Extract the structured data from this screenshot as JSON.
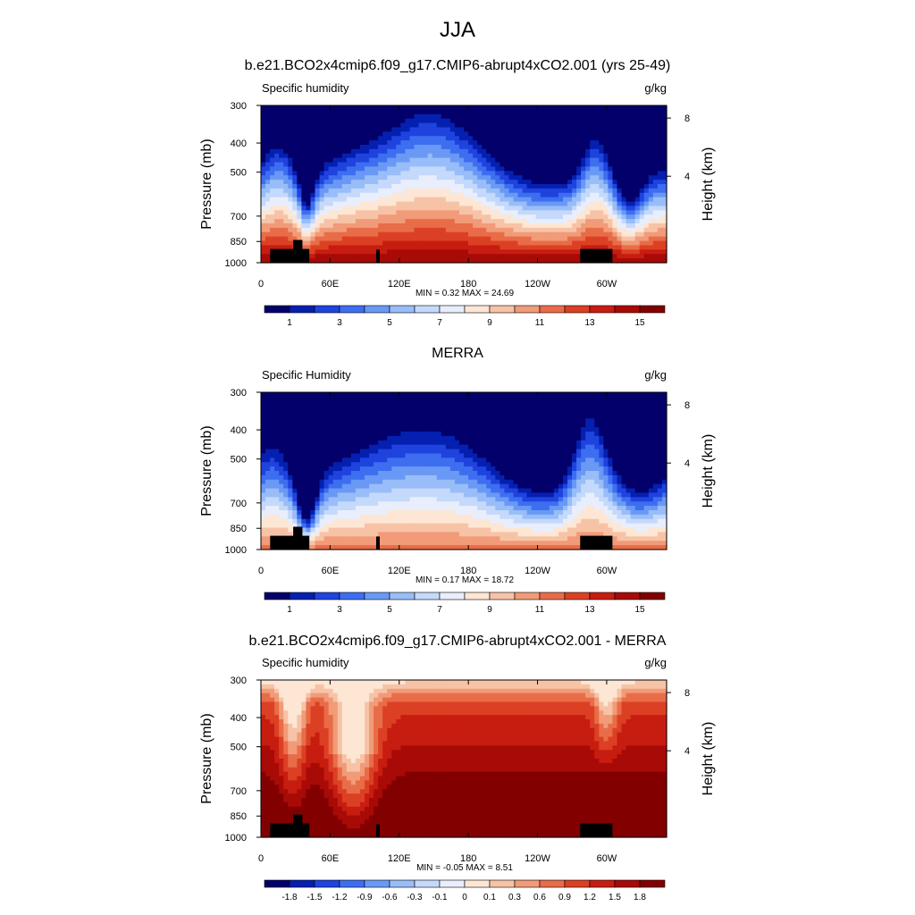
{
  "figure": {
    "title": "JJA",
    "colors": {
      "sequential": [
        "#04006b",
        "#0520b0",
        "#1f43de",
        "#3e6ef0",
        "#6a99f5",
        "#98bdf8",
        "#c4d9fb",
        "#e8eefc",
        "#fde6d4",
        "#f7c3a6",
        "#f19b78",
        "#e96c48",
        "#dc4024",
        "#c71d10",
        "#a80a07",
        "#820000"
      ],
      "diverging": [
        "#04006b",
        "#0520b0",
        "#1f43de",
        "#3e6ef0",
        "#6a99f5",
        "#98bdf8",
        "#c4d9fb",
        "#e8eefc",
        "#fde6d4",
        "#f7c3a6",
        "#f19b78",
        "#e96c48",
        "#dc4024",
        "#c71d10",
        "#a80a07",
        "#820000"
      ],
      "topography": "#000000"
    }
  },
  "chart_data": [
    {
      "type": "heatmap",
      "title": "b.e21.BCO2x4cmip6.f09_g17.CMIP6-abrupt4xCO2.001 (yrs 25-49)",
      "left_label": "Specific humidity",
      "right_label": "g/kg",
      "ylabel": "Pressure (mb)",
      "y2label": "Height (km)",
      "y_ticks": [
        300,
        400,
        500,
        700,
        850,
        1000
      ],
      "y2_ticks": [
        8,
        4
      ],
      "x_ticks": [
        "0",
        "60E",
        "120E",
        "180",
        "120W",
        "60W"
      ],
      "stats": "MIN =   0.32  MAX =  24.69",
      "levels": [
        "1",
        "3",
        "5",
        "7",
        "9",
        "11",
        "13",
        "15"
      ],
      "field": {
        "kind": "model",
        "surface_value": 17.0,
        "moist_scale": 1.0
      }
    },
    {
      "type": "heatmap",
      "title": "MERRA",
      "left_label": "Specific Humidity",
      "right_label": "g/kg",
      "ylabel": "Pressure (mb)",
      "y2label": "Height (km)",
      "y_ticks": [
        300,
        400,
        500,
        700,
        850,
        1000
      ],
      "y2_ticks": [
        8,
        4
      ],
      "x_ticks": [
        "0",
        "60E",
        "120E",
        "180",
        "120W",
        "60W"
      ],
      "stats": "MIN =   0.17  MAX =  18.72",
      "levels": [
        "1",
        "3",
        "5",
        "7",
        "9",
        "11",
        "13",
        "15"
      ],
      "field": {
        "kind": "obs",
        "surface_value": 13.5,
        "moist_scale": 0.72
      }
    },
    {
      "type": "heatmap",
      "title": "b.e21.BCO2x4cmip6.f09_g17.CMIP6-abrupt4xCO2.001 - MERRA",
      "left_label": "Specific humidity",
      "right_label": "g/kg",
      "ylabel": "Pressure (mb)",
      "y2label": "Height (km)",
      "y_ticks": [
        300,
        400,
        500,
        700,
        850,
        1000
      ],
      "y2_ticks": [
        8,
        4
      ],
      "x_ticks": [
        "0",
        "60E",
        "120E",
        "180",
        "120W",
        "60W"
      ],
      "stats": "MIN =  -0.05  MAX =   8.51",
      "levels": [
        "-1.8",
        "-1.5",
        "-1.2",
        "-0.9",
        "-0.6",
        "-0.3",
        "-0.1",
        "0",
        "0.1",
        "0.3",
        "0.6",
        "0.9",
        "1.2",
        "1.5",
        "1.8"
      ],
      "field": {
        "kind": "diff"
      }
    }
  ]
}
